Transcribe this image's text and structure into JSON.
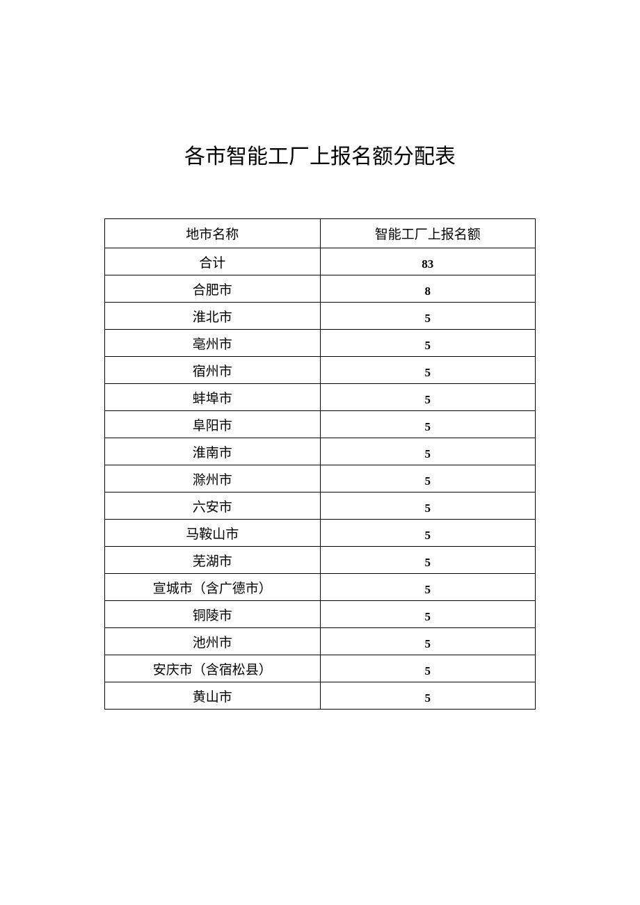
{
  "title": "各市智能工厂上报名额分配表",
  "table": {
    "columns": [
      "地市名称",
      "智能工厂上报名额"
    ],
    "rows": [
      {
        "name": "合计",
        "quota": "83"
      },
      {
        "name": "合肥市",
        "quota": "8"
      },
      {
        "name": "淮北市",
        "quota": "5"
      },
      {
        "name": "亳州市",
        "quota": "5"
      },
      {
        "name": "宿州市",
        "quota": "5"
      },
      {
        "name": "蚌埠市",
        "quota": "5"
      },
      {
        "name": "阜阳市",
        "quota": "5"
      },
      {
        "name": "淮南市",
        "quota": "5"
      },
      {
        "name": "滁州市",
        "quota": "5"
      },
      {
        "name": "六安市",
        "quota": "5"
      },
      {
        "name": "马鞍山市",
        "quota": "5"
      },
      {
        "name": "芜湖市",
        "quota": "5"
      },
      {
        "name": "宣城市（含广德市）",
        "quota": "5"
      },
      {
        "name": "铜陵市",
        "quota": "5"
      },
      {
        "name": "池州市",
        "quota": "5"
      },
      {
        "name": "安庆市（含宿松县）",
        "quota": "5"
      },
      {
        "name": "黄山市",
        "quota": "5"
      }
    ],
    "border_color": "#000000",
    "background_color": "#ffffff",
    "text_color": "#000000",
    "name_fontsize": 19,
    "quota_fontsize": 17,
    "header_fontsize": 19
  }
}
